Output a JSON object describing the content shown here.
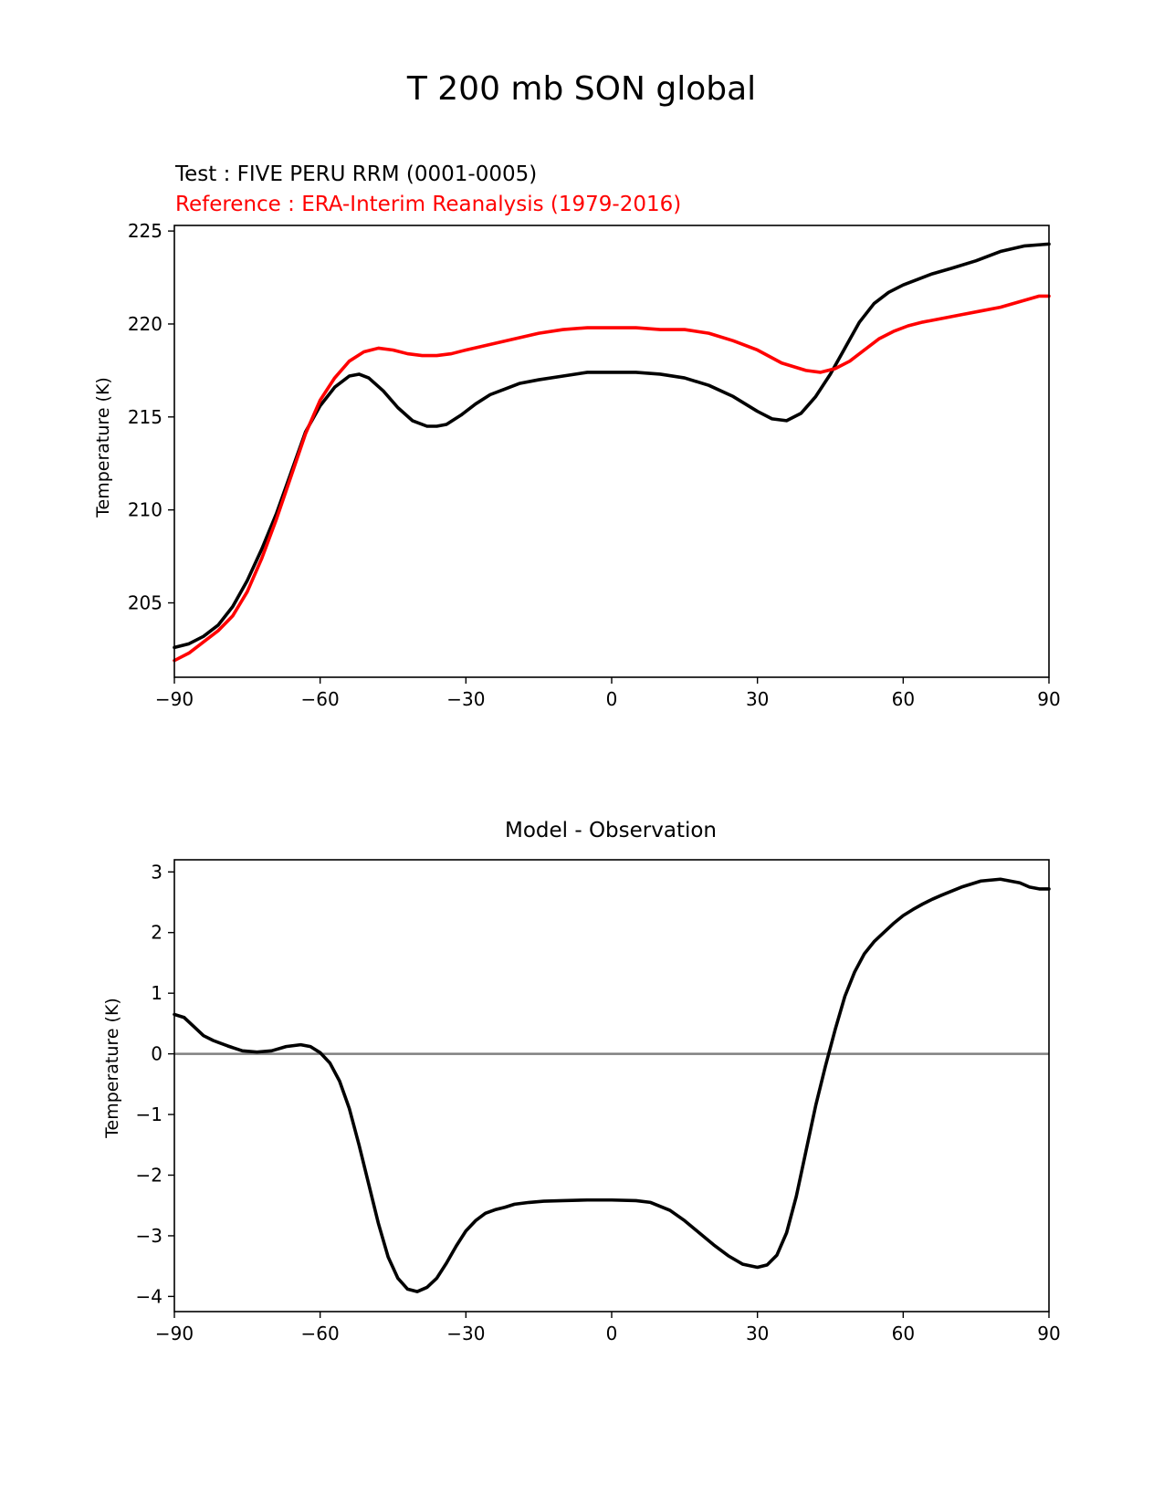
{
  "figure": {
    "title": "T 200 mb SON global"
  },
  "colors": {
    "test": "#000000",
    "reference": "#ff0000",
    "zero_line": "#808080",
    "axes": "#000000"
  },
  "chart_data": [
    {
      "type": "line",
      "test_label": "Test : FIVE PERU RRM (0001-0005)",
      "reference_label": "Reference : ERA-Interim Reanalysis (1979-2016)",
      "xlabel": "",
      "ylabel": "Temperature (K)",
      "xlim": [
        -90,
        90
      ],
      "ylim": [
        201,
        225.3
      ],
      "xticks": [
        -90,
        -60,
        -30,
        0,
        30,
        60,
        90
      ],
      "xtick_labels": [
        "−90",
        "−60",
        "−30",
        "0",
        "30",
        "60",
        "90"
      ],
      "yticks": [
        205,
        210,
        215,
        220,
        225
      ],
      "ytick_labels": [
        "205",
        "210",
        "215",
        "220",
        "225"
      ],
      "series": [
        {
          "key": "test",
          "x": [
            -90,
            -87,
            -84,
            -81,
            -78,
            -75,
            -72,
            -69,
            -66,
            -63,
            -60,
            -57,
            -54,
            -52,
            -50,
            -47,
            -44,
            -41,
            -38,
            -36,
            -34,
            -31,
            -28,
            -25,
            -22,
            -19,
            -15,
            -10,
            -5,
            0,
            5,
            10,
            15,
            20,
            25,
            30,
            33,
            36,
            39,
            42,
            45,
            48,
            51,
            54,
            57,
            60,
            63,
            66,
            70,
            75,
            80,
            85,
            90
          ],
          "values": [
            202.6,
            202.8,
            203.2,
            203.8,
            204.8,
            206.2,
            207.9,
            209.8,
            212.0,
            214.2,
            215.6,
            216.6,
            217.2,
            217.3,
            217.1,
            216.4,
            215.5,
            214.8,
            214.5,
            214.5,
            214.6,
            215.1,
            215.7,
            216.2,
            216.5,
            216.8,
            217.0,
            217.2,
            217.4,
            217.4,
            217.4,
            217.3,
            217.1,
            216.7,
            216.1,
            215.3,
            214.9,
            214.8,
            215.2,
            216.1,
            217.3,
            218.7,
            220.1,
            221.1,
            221.7,
            222.1,
            222.4,
            222.7,
            223.0,
            223.4,
            223.9,
            224.2,
            224.3
          ]
        },
        {
          "key": "reference",
          "x": [
            -90,
            -87,
            -84,
            -81,
            -78,
            -75,
            -72,
            -69,
            -66,
            -63,
            -60,
            -57,
            -54,
            -51,
            -48,
            -45,
            -42,
            -39,
            -36,
            -33,
            -30,
            -25,
            -20,
            -15,
            -10,
            -5,
            0,
            5,
            10,
            15,
            20,
            25,
            30,
            35,
            40,
            43,
            46,
            49,
            52,
            55,
            58,
            61,
            64,
            68,
            72,
            76,
            80,
            84,
            88,
            90
          ],
          "values": [
            201.9,
            202.3,
            202.9,
            203.5,
            204.3,
            205.6,
            207.4,
            209.5,
            211.8,
            214.1,
            215.9,
            217.1,
            218.0,
            218.5,
            218.7,
            218.6,
            218.4,
            218.3,
            218.3,
            218.4,
            218.6,
            218.9,
            219.2,
            219.5,
            219.7,
            219.8,
            219.8,
            219.8,
            219.7,
            219.7,
            219.5,
            219.1,
            218.6,
            217.9,
            217.5,
            217.4,
            217.6,
            218.0,
            218.6,
            219.2,
            219.6,
            219.9,
            220.1,
            220.3,
            220.5,
            220.7,
            220.9,
            221.2,
            221.5,
            221.5
          ]
        }
      ]
    },
    {
      "type": "line",
      "title": "Model - Observation",
      "xlabel": "",
      "ylabel": "Temperature (K)",
      "xlim": [
        -90,
        90
      ],
      "ylim": [
        -4.25,
        3.2
      ],
      "xticks": [
        -90,
        -60,
        -30,
        0,
        30,
        60,
        90
      ],
      "xtick_labels": [
        "−90",
        "−60",
        "−30",
        "0",
        "30",
        "60",
        "90"
      ],
      "yticks": [
        -4,
        -3,
        -2,
        -1,
        0,
        1,
        2,
        3
      ],
      "ytick_labels": [
        "−4",
        "−3",
        "−2",
        "−1",
        "0",
        "1",
        "2",
        "3"
      ],
      "reference_line_y": 0,
      "series": [
        {
          "key": "difference",
          "x": [
            -90,
            -88,
            -86,
            -84,
            -82,
            -79,
            -76,
            -73,
            -70,
            -67,
            -64,
            -62,
            -60,
            -58,
            -56,
            -54,
            -52,
            -50,
            -48,
            -46,
            -44,
            -42,
            -40,
            -38,
            -36,
            -34,
            -32,
            -30,
            -28,
            -26,
            -24,
            -22,
            -20,
            -17,
            -14,
            -10,
            -5,
            0,
            5,
            8,
            12,
            15,
            18,
            21,
            24,
            27,
            30,
            32,
            34,
            36,
            38,
            40,
            42,
            44,
            46,
            48,
            50,
            52,
            54,
            56,
            58,
            60,
            62,
            64,
            66,
            68,
            72,
            76,
            80,
            82,
            84,
            86,
            88,
            90
          ],
          "values": [
            0.65,
            0.6,
            0.45,
            0.3,
            0.22,
            0.13,
            0.05,
            0.03,
            0.05,
            0.12,
            0.15,
            0.12,
            0.02,
            -0.15,
            -0.45,
            -0.9,
            -1.5,
            -2.15,
            -2.8,
            -3.35,
            -3.7,
            -3.88,
            -3.92,
            -3.85,
            -3.7,
            -3.45,
            -3.17,
            -2.92,
            -2.75,
            -2.63,
            -2.57,
            -2.53,
            -2.48,
            -2.45,
            -2.43,
            -2.42,
            -2.41,
            -2.41,
            -2.42,
            -2.45,
            -2.58,
            -2.75,
            -2.95,
            -3.15,
            -3.33,
            -3.47,
            -3.52,
            -3.48,
            -3.32,
            -2.95,
            -2.35,
            -1.6,
            -0.85,
            -0.2,
            0.4,
            0.95,
            1.35,
            1.65,
            1.85,
            2.0,
            2.15,
            2.28,
            2.38,
            2.47,
            2.55,
            2.62,
            2.75,
            2.85,
            2.88,
            2.85,
            2.82,
            2.75,
            2.72,
            2.72
          ]
        }
      ]
    }
  ]
}
